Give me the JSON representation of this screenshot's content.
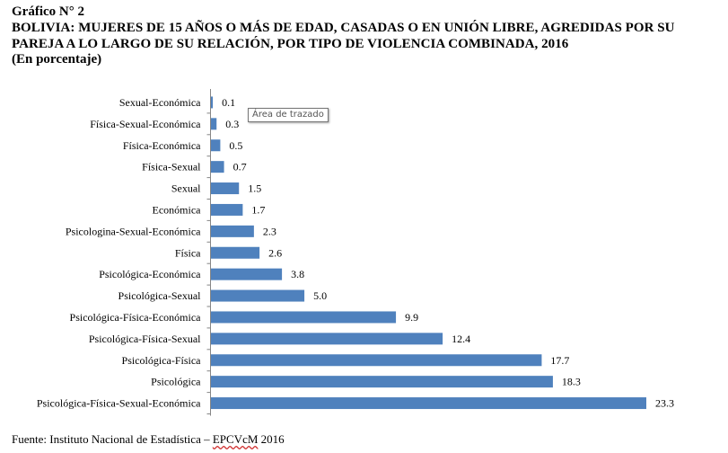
{
  "heading": {
    "label": "Gráfico N° 2",
    "title": "BOLIVIA: MUJERES DE 15 AÑOS O MÁS DE EDAD, CASADAS O EN UNIÓN LIBRE, AGREDIDAS POR SU PAREJA A LO LARGO DE SU RELACIÓN, POR TIPO DE VIOLENCIA COMBINADA, 2016",
    "unit": "(En porcentaje)"
  },
  "tooltip": "Área de trazado",
  "source": {
    "prefix": "Fuente: Instituto Nacional de Estadística – ",
    "survey": "EPCVcM",
    "year": " 2016"
  },
  "chart_data": {
    "type": "bar",
    "orientation": "horizontal",
    "categories": [
      "Sexual-Económica",
      "Física-Sexual-Económica",
      "Física-Económica",
      "Física-Sexual",
      "Sexual",
      "Económica",
      "Psicologina-Sexual-Económica",
      "Física",
      "Psicológica-Económica",
      "Psicológica-Sexual",
      "Psicológica-Física-Económica",
      "Psicológica-Física-Sexual",
      "Psicológica-Física",
      "Psicológica",
      "Psicológica-Física-Sexual-Económica"
    ],
    "values": [
      0.1,
      0.3,
      0.5,
      0.7,
      1.5,
      1.7,
      2.3,
      2.6,
      3.8,
      5.0,
      9.9,
      12.4,
      17.7,
      18.3,
      23.3
    ],
    "value_labels": [
      "0.1",
      "0.3",
      "0.5",
      "0.7",
      "1.5",
      "1.7",
      "2.3",
      "2.6",
      "3.8",
      "5.0",
      "9.9",
      "12.4",
      "17.7",
      "18.3",
      "23.3"
    ],
    "xlim": [
      0,
      23.3
    ],
    "bar_color": "#4f81bd",
    "grid": false,
    "legend": "none"
  }
}
